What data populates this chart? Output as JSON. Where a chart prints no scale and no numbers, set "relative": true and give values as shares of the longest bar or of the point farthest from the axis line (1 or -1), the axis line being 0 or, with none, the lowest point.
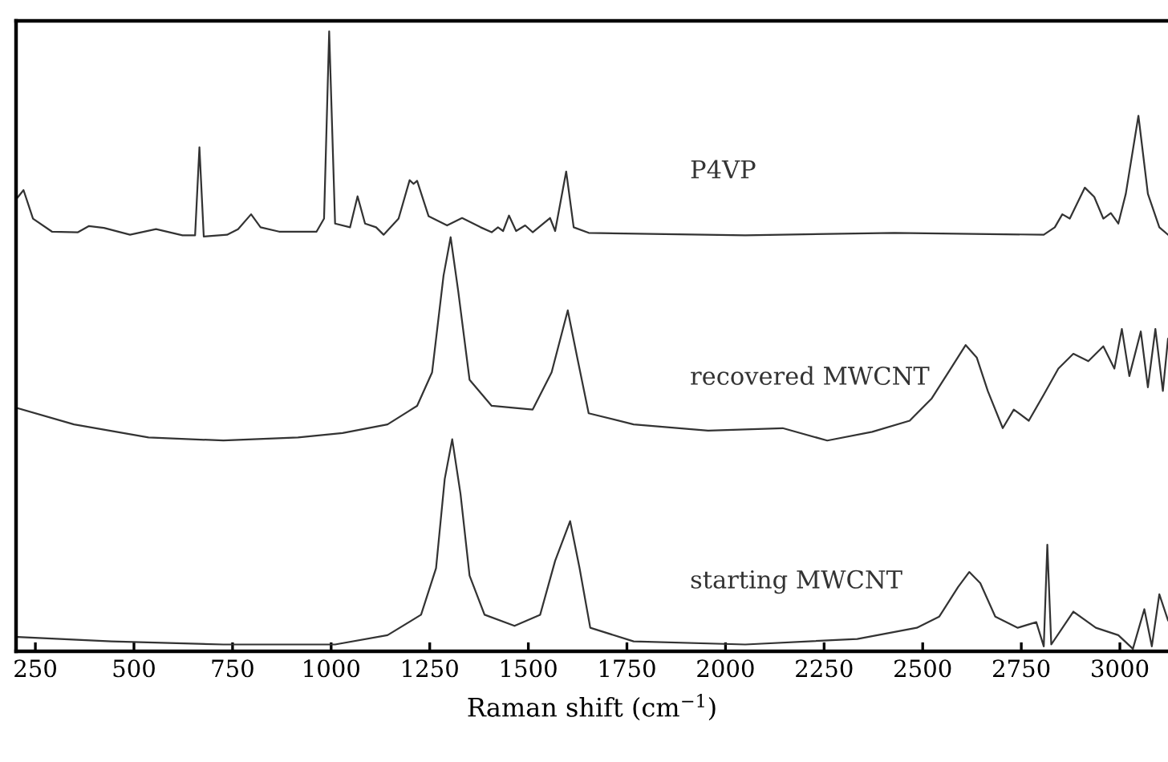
{
  "chart_data": {
    "type": "line",
    "relative": true,
    "xlabel": "Raman shift (cm$^{−1}$)",
    "xlim": [
      201,
      3122
    ],
    "xticks": [
      250,
      500,
      750,
      1000,
      1250,
      1500,
      1750,
      2000,
      2250,
      2500,
      2750,
      3000
    ],
    "tick_labels": "x",
    "grid": false,
    "legend": false,
    "marker": "none",
    "line_style": "solid",
    "series": [
      {
        "name": "P4VP",
        "color": "#333333",
        "x": [
          201,
          220,
          244,
          292,
          358,
          386,
          424,
          490,
          556,
          623,
          655,
          666,
          677,
          736,
          764,
          797,
          821,
          868,
          963,
          982,
          995,
          1010,
          1048,
          1067,
          1086,
          1114,
          1133,
          1171,
          1199,
          1209,
          1218,
          1247,
          1294,
          1332,
          1379,
          1407,
          1423,
          1436,
          1451,
          1469,
          1492,
          1511,
          1555,
          1568,
          1596,
          1615,
          1653,
          2050,
          2428,
          2807,
          2835,
          2854,
          2873,
          2911,
          2935,
          2958,
          2977,
          2996,
          3015,
          3047,
          3071,
          3100,
          3122
        ],
        "values": [
          0.729,
          0.744,
          0.698,
          0.677,
          0.676,
          0.686,
          0.683,
          0.672,
          0.681,
          0.671,
          0.671,
          0.813,
          0.669,
          0.672,
          0.681,
          0.705,
          0.684,
          0.677,
          0.677,
          0.698,
          1.0,
          0.69,
          0.684,
          0.734,
          0.69,
          0.684,
          0.672,
          0.698,
          0.76,
          0.754,
          0.759,
          0.702,
          0.687,
          0.699,
          0.684,
          0.676,
          0.684,
          0.678,
          0.703,
          0.678,
          0.687,
          0.676,
          0.699,
          0.678,
          0.774,
          0.684,
          0.675,
          0.671,
          0.675,
          0.672,
          0.684,
          0.705,
          0.698,
          0.748,
          0.733,
          0.698,
          0.707,
          0.69,
          0.738,
          0.864,
          0.738,
          0.684,
          0.672
        ]
      },
      {
        "name": "recovered MWCNT",
        "color": "#333333",
        "x": [
          206,
          348,
          537,
          727,
          916,
          1029,
          1143,
          1218,
          1256,
          1285,
          1303,
          1322,
          1351,
          1407,
          1511,
          1559,
          1600,
          1624,
          1653,
          1767,
          1956,
          2145,
          2258,
          2372,
          2467,
          2523,
          2571,
          2609,
          2637,
          2665,
          2703,
          2731,
          2769,
          2807,
          2844,
          2882,
          2920,
          2958,
          2986,
          3005,
          3024,
          3053,
          3071,
          3090,
          3109,
          3122
        ],
        "values": [
          0.392,
          0.366,
          0.345,
          0.34,
          0.345,
          0.352,
          0.366,
          0.396,
          0.45,
          0.606,
          0.668,
          0.582,
          0.438,
          0.396,
          0.39,
          0.45,
          0.55,
          0.474,
          0.384,
          0.366,
          0.356,
          0.36,
          0.34,
          0.354,
          0.372,
          0.408,
          0.456,
          0.494,
          0.474,
          0.42,
          0.36,
          0.39,
          0.372,
          0.414,
          0.456,
          0.48,
          0.468,
          0.492,
          0.456,
          0.52,
          0.444,
          0.516,
          0.426,
          0.52,
          0.42,
          0.504
        ]
      },
      {
        "name": "starting MWCNT",
        "color": "#333333",
        "x": [
          206,
          443,
          727,
          1010,
          1143,
          1228,
          1266,
          1288,
          1307,
          1328,
          1351,
          1389,
          1465,
          1530,
          1568,
          1606,
          1630,
          1657,
          1767,
          2050,
          2334,
          2485,
          2542,
          2590,
          2618,
          2646,
          2684,
          2741,
          2788,
          2807,
          2816,
          2826,
          2882,
          2939,
          2996,
          3033,
          3062,
          3081,
          3100,
          3122
        ],
        "values": [
          0.023,
          0.016,
          0.011,
          0.011,
          0.026,
          0.059,
          0.134,
          0.278,
          0.342,
          0.254,
          0.122,
          0.059,
          0.041,
          0.059,
          0.146,
          0.21,
          0.134,
          0.038,
          0.016,
          0.011,
          0.02,
          0.038,
          0.056,
          0.104,
          0.128,
          0.11,
          0.056,
          0.038,
          0.047,
          0.008,
          0.172,
          0.011,
          0.064,
          0.038,
          0.026,
          0.004,
          0.068,
          0.008,
          0.092,
          0.05
        ]
      }
    ]
  }
}
